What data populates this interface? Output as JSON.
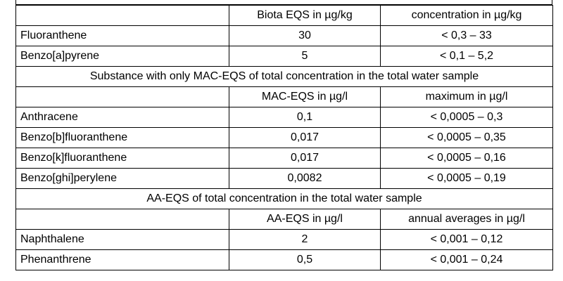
{
  "table": {
    "sections": [
      {
        "header": [
          "Biota EQS in µg/kg",
          "concentration in µg/kg"
        ],
        "rows": [
          [
            "Fluoranthene",
            "30",
            "< 0,3 – 33"
          ],
          [
            "Benzo[a]pyrene",
            "5",
            "< 0,1 – 5,2"
          ]
        ]
      },
      {
        "title": "Substance with only MAC-EQS of total concentration in the total water sample",
        "header": [
          "MAC-EQS in µg/l",
          "maximum in µg/l"
        ],
        "rows": [
          [
            "Anthracene",
            "0,1",
            "< 0,0005 – 0,3"
          ],
          [
            "Benzo[b]fluoranthene",
            "0,017",
            "< 0,0005 – 0,35"
          ],
          [
            "Benzo[k]fluoranthene",
            "0,017",
            "< 0,0005 – 0,16"
          ],
          [
            "Benzo[ghi]perylene",
            "0,0082",
            "< 0,0005 – 0,19"
          ]
        ]
      },
      {
        "title": "AA-EQS of total concentration in the total water sample",
        "header": [
          "AA-EQS in µg/l",
          "annual averages in µg/l"
        ],
        "rows": [
          [
            "Naphthalene",
            "2",
            "< 0,001 – 0,12"
          ],
          [
            "Phenanthrene",
            "0,5",
            "< 0,001 – 0,24"
          ]
        ]
      }
    ]
  }
}
